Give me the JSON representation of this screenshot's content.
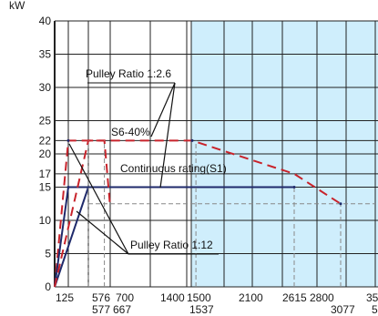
{
  "chart_data": {
    "type": "line",
    "ylabel": "kW",
    "ylim": [
      0,
      40
    ],
    "yticks": [
      0,
      5,
      10,
      15,
      17,
      20,
      22,
      25,
      30,
      35,
      40
    ],
    "xticks_row1": [
      "125",
      "576",
      "700",
      "1400",
      "1500",
      "2100",
      "2615",
      "2800",
      "35"
    ],
    "xticks_row2": [
      "577",
      "667",
      "1537",
      "3077",
      "5"
    ],
    "colors": {
      "red": "#c8232b",
      "navy": "#1f2a6b",
      "shade": "#cfeefc",
      "grid": "#222222",
      "guide": "#888888"
    },
    "annotations": {
      "pulley_top": "Pulley Ratio 1:2.6",
      "s6": "S6-40%",
      "continuous": "Continuous rating(S1)",
      "pulley_bottom": "Pulley Ratio 1:12"
    },
    "series": [
      {
        "name": "S6-40%",
        "style": "dashed",
        "color": "red",
        "points": [
          [
            0,
            0
          ],
          [
            125,
            22
          ],
          [
            1500,
            22
          ],
          [
            2615,
            17
          ],
          [
            3077,
            12.5
          ]
        ]
      },
      {
        "name": "Continuous rating(S1)",
        "style": "solid",
        "color": "navy",
        "points": [
          [
            0,
            0
          ],
          [
            125,
            15
          ],
          [
            2615,
            15
          ]
        ]
      },
      {
        "style": "solid",
        "color": "navy",
        "points": [
          [
            0,
            0
          ],
          [
            576,
            15
          ]
        ]
      },
      {
        "style": "dashed",
        "color": "red",
        "points": [
          [
            0,
            0
          ],
          [
            576,
            22
          ],
          [
            667,
            22
          ],
          [
            700,
            12
          ]
        ]
      },
      {
        "style": "dashed",
        "color": "gray",
        "points": [
          [
            577,
            0
          ],
          [
            577,
            22
          ]
        ]
      },
      {
        "style": "dashed",
        "color": "gray",
        "points": [
          [
            667,
            0
          ],
          [
            667,
            22
          ]
        ]
      },
      {
        "style": "dashed",
        "color": "gray",
        "points": [
          [
            1537,
            0
          ],
          [
            1537,
            22
          ]
        ]
      },
      {
        "style": "dashed",
        "color": "gray",
        "points": [
          [
            2615,
            0
          ],
          [
            2615,
            15
          ]
        ]
      },
      {
        "style": "dashed",
        "color": "gray",
        "points": [
          [
            3077,
            0
          ],
          [
            3077,
            12.5
          ]
        ]
      },
      {
        "style": "dashed",
        "color": "gray",
        "points": [
          [
            576,
            12.5
          ],
          [
            3500,
            12.5
          ]
        ]
      }
    ]
  }
}
